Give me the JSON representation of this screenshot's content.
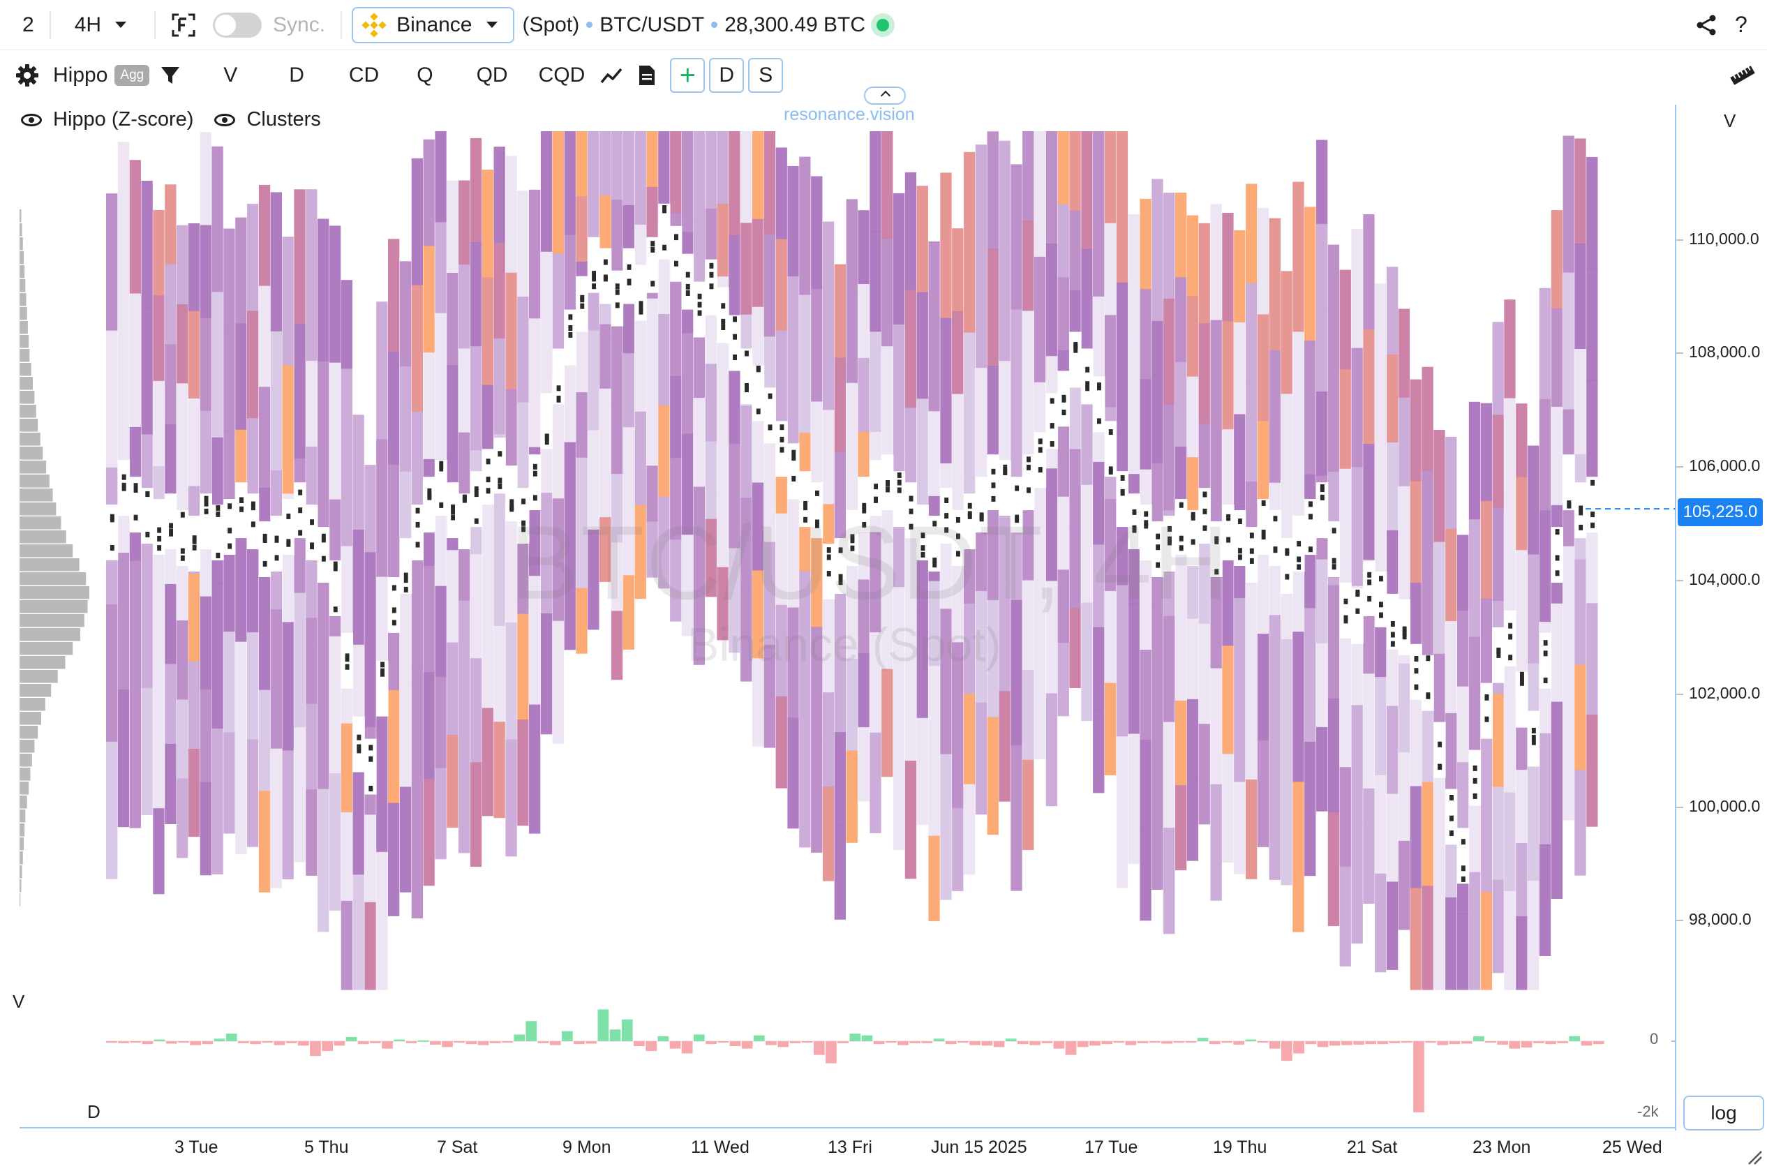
{
  "topbar": {
    "layout_count": "2",
    "interval": "4H",
    "sync_label": "Sync.",
    "exchange": "Binance",
    "market": "(Spot)",
    "symbol": "BTC/USDT",
    "volume": "28,300.49 BTC"
  },
  "toolbar": {
    "indicator": "Hippo",
    "agg_badge": "Agg",
    "modes": [
      "V",
      "D",
      "CD",
      "Q",
      "QD",
      "CQD"
    ],
    "d_button": "D",
    "s_button": "S"
  },
  "brand": "resonance.vision",
  "legend": {
    "layer1": "Hippo (Z-score)",
    "layer2": "Clusters"
  },
  "watermark": {
    "title": "BTC/USDT, 4H",
    "subtitle": "Binance (Spot)"
  },
  "price_axis": {
    "label_top": "V",
    "ticks": [
      "110,000.0",
      "108,000.0",
      "106,000.0",
      "104,000.0",
      "102,000.0",
      "100,000.0",
      "98,000.0"
    ],
    "current_price": "105,225.0"
  },
  "delta_pane": {
    "label_left": "V",
    "label_bottom": "D",
    "ticks": [
      "0",
      "-2k"
    ]
  },
  "time_axis": {
    "labels": [
      "3 Tue",
      "5 Thu",
      "7 Sat",
      "9 Mon",
      "11 Wed",
      "13 Fri",
      "Jun 15 2025",
      "17 Tue",
      "19 Thu",
      "21 Sat",
      "23 Mon",
      "25 Wed"
    ]
  },
  "log_button": "log",
  "colors": {
    "accent": "#1a82f2",
    "outline": "#9ec5ee",
    "live": "#1fc46c",
    "positive_delta": "#7fe0a8",
    "negative_delta": "#f7a8ac",
    "heat_low": "#ebe3f3",
    "heat_mid": "#b787c6",
    "heat_high": "#e48e8a",
    "heat_peak": "#fca46a"
  },
  "chart_data": {
    "type": "heatmap",
    "title": "BTC/USDT, 4H",
    "subtitle": "Binance (Spot)",
    "x": [
      "3 Tue",
      "5 Thu",
      "7 Sat",
      "9 Mon",
      "11 Wed",
      "13 Fri",
      "Jun 15 2025",
      "17 Tue",
      "19 Thu",
      "21 Sat",
      "23 Mon",
      "25 Wed"
    ],
    "ylim": [
      96600,
      112000
    ],
    "y_ticks": [
      110000,
      108000,
      106000,
      104000,
      102000,
      100000,
      98000
    ],
    "price_path": [
      104800,
      105600,
      105300,
      105100,
      104900,
      105000,
      104700,
      104600,
      105000,
      104800,
      104900,
      105200,
      105000,
      104500,
      104600,
      104900,
      105200,
      104800,
      104400,
      103800,
      102500,
      101000,
      100600,
      102000,
      103500,
      104200,
      104800,
      105300,
      105600,
      105200,
      105000,
      105400,
      105800,
      106000,
      105500,
      105100,
      105700,
      106800,
      107600,
      108300,
      108900,
      109600,
      109400,
      109000,
      109400,
      109100,
      109600,
      110200,
      109800,
      109300,
      108800,
      109200,
      108700,
      108200,
      107600,
      107300,
      106900,
      106300,
      105900,
      105400,
      105200,
      104100,
      104200,
      104700,
      105300,
      105600,
      105700,
      105400,
      105200,
      104800,
      104600,
      105100,
      104700,
      105000,
      105300,
      105700,
      105600,
      105300,
      105700,
      106100,
      106800,
      107200,
      107900,
      107600,
      107100,
      106300,
      105400,
      105000,
      104800,
      104500,
      104600,
      104900,
      104700,
      105100,
      104500,
      104800,
      104700,
      104400,
      104900,
      104700,
      104200,
      104600,
      104900,
      105200,
      104500,
      103400,
      103300,
      103800,
      103600,
      103200,
      103100,
      102300,
      102100,
      100900,
      99700,
      99000,
      100400,
      101600,
      102600,
      102900,
      101800,
      101100,
      102500,
      104400,
      105700,
      105200,
      105300
    ],
    "profile_bins": [
      1,
      2,
      3,
      4,
      5,
      6,
      7,
      9,
      11,
      13,
      15,
      18,
      22,
      26,
      31,
      38,
      46,
      55,
      64,
      73,
      78,
      82,
      84,
      80,
      72,
      64,
      56,
      50,
      44,
      40,
      36,
      32,
      28,
      25,
      22,
      20,
      18,
      16,
      14,
      12,
      11,
      10,
      9,
      8,
      7,
      6,
      5,
      4,
      3,
      2
    ],
    "delta": [
      -30,
      -40,
      -10,
      -60,
      20,
      -50,
      -20,
      -80,
      -60,
      30,
      90,
      -40,
      -60,
      -30,
      -80,
      -40,
      -90,
      -300,
      -200,
      -90,
      50,
      -60,
      -40,
      -150,
      20,
      -40,
      10,
      -70,
      -120,
      -30,
      -60,
      -80,
      -40,
      -20,
      80,
      240,
      -40,
      -80,
      120,
      -60,
      -50,
      380,
      140,
      260,
      -100,
      -200,
      60,
      -150,
      -250,
      80,
      -60,
      -20,
      -100,
      -150,
      70,
      -80,
      -120,
      -40,
      -20,
      -280,
      -450,
      -40,
      90,
      70,
      -60,
      -20,
      -80,
      -40,
      -40,
      30,
      -60,
      -10,
      -80,
      -90,
      -120,
      30,
      -60,
      -80,
      -40,
      -150,
      -280,
      -120,
      -90,
      -60,
      -30,
      -80,
      -40,
      -20,
      -50,
      -30,
      -10,
      40,
      -60,
      -30,
      -70,
      20,
      -20,
      -150,
      -400,
      -250,
      -60,
      -120,
      -90,
      -80,
      -70,
      -60,
      -60,
      -40,
      -30,
      -1450,
      -30,
      -80,
      -60,
      -50,
      60,
      -20,
      -70,
      -150,
      -130,
      -40,
      -60,
      -40,
      60,
      -90,
      -60
    ]
  }
}
